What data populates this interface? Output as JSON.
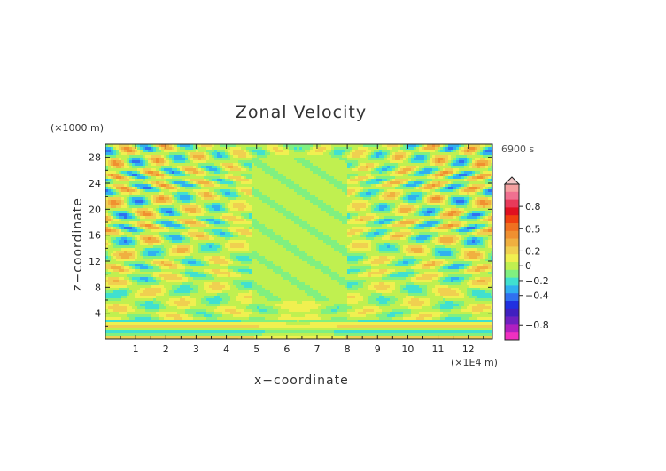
{
  "chart_data": {
    "type": "heatmap",
    "title": "Zonal Velocity",
    "xlabel": "x−coordinate",
    "ylabel": "z−coordinate",
    "x_unit": "(×1E4 m)",
    "y_unit": "(×1000 m)",
    "time_label": "6900 s",
    "x_ticks": [
      "1",
      "2",
      "3",
      "4",
      "5",
      "6",
      "7",
      "8",
      "9",
      "10",
      "11",
      "12"
    ],
    "y_ticks": [
      "4",
      "8",
      "12",
      "16",
      "20",
      "24",
      "28"
    ],
    "x_tick_values": [
      1,
      2,
      3,
      4,
      5,
      6,
      7,
      8,
      9,
      10,
      11,
      12
    ],
    "y_tick_values": [
      4,
      8,
      12,
      16,
      20,
      24,
      28
    ],
    "xlim": [
      0,
      12.8
    ],
    "ylim": [
      0,
      30
    ],
    "colorbar": {
      "labels": [
        "0.8",
        "0.5",
        "0.2",
        "0",
        "−0.2",
        "−0.4",
        "−0.8"
      ],
      "label_values": [
        0.8,
        0.5,
        0.2,
        0,
        -0.2,
        -0.4,
        -0.8
      ],
      "levels": [
        1.0,
        0.9,
        0.8,
        0.7,
        0.6,
        0.5,
        0.4,
        0.3,
        0.2,
        0.1,
        0,
        -0.1,
        -0.2,
        -0.3,
        -0.4,
        -0.5,
        -0.6,
        -0.7,
        -0.8,
        -0.9
      ],
      "colors": [
        "#f5a0a0",
        "#f07090",
        "#e83a5a",
        "#e01020",
        "#f04010",
        "#f07020",
        "#f09030",
        "#f0b040",
        "#f0d050",
        "#f0f050",
        "#c0f050",
        "#80f080",
        "#40e0d0",
        "#30b0f0",
        "#3070f0",
        "#2030e0",
        "#4020c0",
        "#7020c0",
        "#b020c0",
        "#f030c0"
      ]
    },
    "field": {
      "description_values": "zonal velocity, sampled on a coarse grid",
      "background_value": 0.05
    }
  }
}
